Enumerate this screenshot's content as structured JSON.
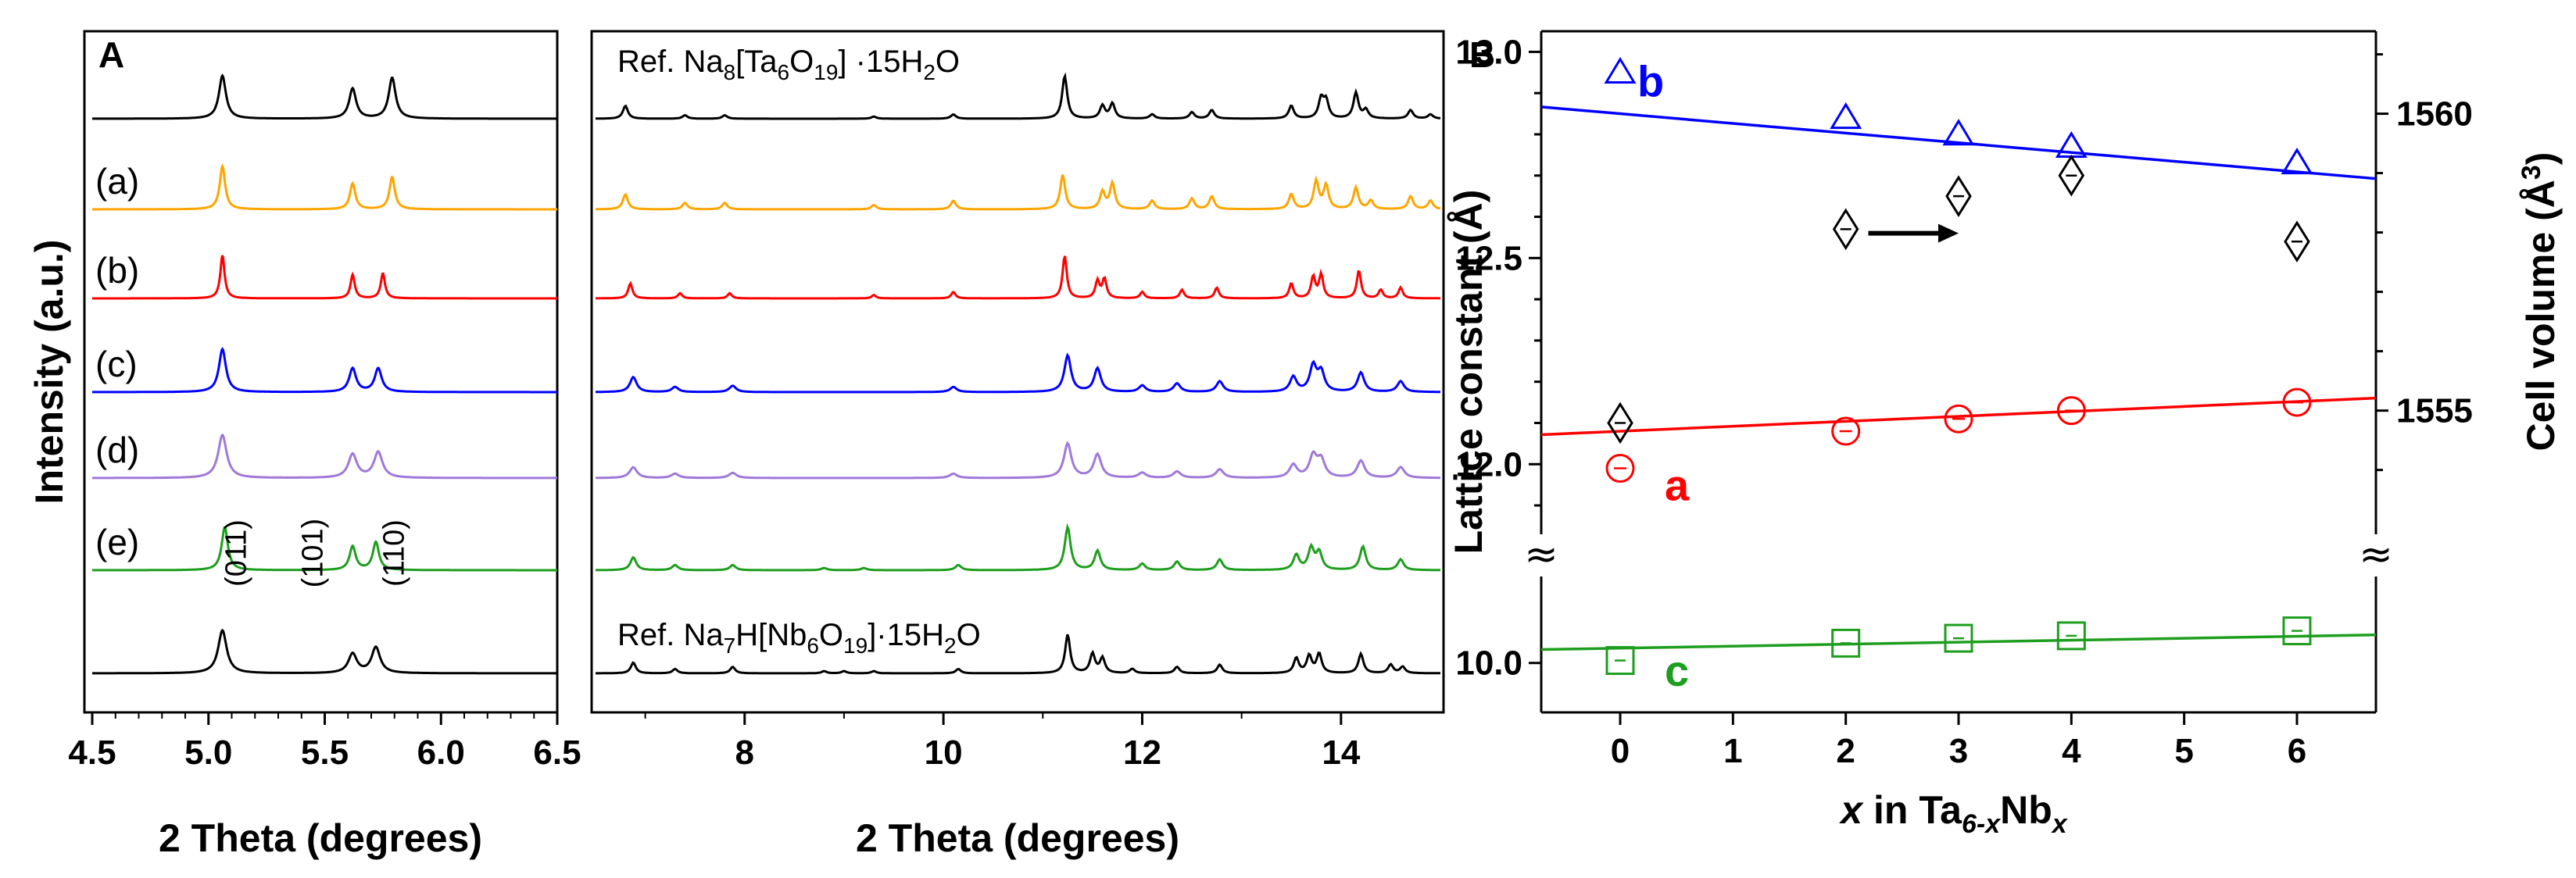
{
  "chart_data": [
    {
      "panel": "A",
      "type": "line",
      "xlabel": "2 Theta (degrees)",
      "ylabel": "Intensity (a.u.)",
      "xlim": [
        4.5,
        6.5
      ],
      "xticks": [
        4.5,
        5.0,
        5.5,
        6.0,
        6.5
      ],
      "xtick_labels": [
        "4.5",
        "5.0",
        "5.5",
        "6.0",
        "6.5"
      ],
      "hkl_labels": [
        {
          "text": "(011)",
          "x": 5.16
        },
        {
          "text": "(101)",
          "x": 5.49
        },
        {
          "text": "(110)",
          "x": 5.84
        }
      ],
      "series": [
        {
          "name": "Ref. Na8[Ta6O19]·15H2O",
          "label": "",
          "color": "#000000",
          "width": 0.018,
          "peaks": [
            [
              5.06,
              1.0
            ],
            [
              5.62,
              0.7
            ],
            [
              5.79,
              0.95
            ]
          ]
        },
        {
          "name": "(a)",
          "label": "(a)",
          "color": "#FFA500",
          "width": 0.014,
          "peaks": [
            [
              5.06,
              1.0
            ],
            [
              5.62,
              0.6
            ],
            [
              5.79,
              0.75
            ]
          ]
        },
        {
          "name": "(b)",
          "label": "(b)",
          "color": "#FF0000",
          "width": 0.011,
          "peaks": [
            [
              5.06,
              1.0
            ],
            [
              5.62,
              0.55
            ],
            [
              5.75,
              0.58
            ]
          ]
        },
        {
          "name": "(c)",
          "label": "(c)",
          "color": "#0000FF",
          "width": 0.018,
          "peaks": [
            [
              5.06,
              1.0
            ],
            [
              5.62,
              0.55
            ],
            [
              5.73,
              0.55
            ]
          ]
        },
        {
          "name": "(d)",
          "label": "(d)",
          "color": "#9F79D9",
          "width": 0.022,
          "peaks": [
            [
              5.06,
              1.0
            ],
            [
              5.62,
              0.55
            ],
            [
              5.73,
              0.6
            ]
          ]
        },
        {
          "name": "(e)",
          "label": "(e)",
          "color": "#1E9E1E",
          "width": 0.016,
          "peaks": [
            [
              5.07,
              1.0
            ],
            [
              5.62,
              0.55
            ],
            [
              5.72,
              0.65
            ]
          ]
        },
        {
          "name": "Ref. Na7H[Nb6O19]·15H2O",
          "label": "",
          "color": "#000000",
          "width": 0.022,
          "peaks": [
            [
              5.06,
              1.0
            ],
            [
              5.62,
              0.45
            ],
            [
              5.72,
              0.6
            ]
          ]
        }
      ]
    },
    {
      "panel": "A-continued",
      "type": "line",
      "xlabel": "2 Theta (degrees)",
      "xlim": [
        6.5,
        15.0
      ],
      "xticks": [
        8,
        10,
        12,
        14
      ],
      "xtick_labels": [
        "8",
        "10",
        "12",
        "14"
      ],
      "ref_top": {
        "prefix": "Ref. Na",
        "s1": "8",
        "mid": "[Ta",
        "s2": "6",
        "mid2": "O",
        "s3": "19",
        "suffix": "] ·15H",
        "s4": "2",
        "end": "O"
      },
      "ref_bottom": {
        "prefix": "Ref. Na",
        "s1": "7",
        "mid": "H[Nb",
        "s2": "6",
        "mid2": "O",
        "s3": "19",
        "suffix": "]·15H",
        "s4": "2",
        "end": "O"
      },
      "series": [
        {
          "name": "Ref. Na8[Ta6O19]·15H2O",
          "color": "#000000",
          "width": 0.03,
          "peaks": [
            [
              6.8,
              0.3
            ],
            [
              7.4,
              0.08
            ],
            [
              7.8,
              0.08
            ],
            [
              9.3,
              0.05
            ],
            [
              10.1,
              0.1
            ],
            [
              11.22,
              1.0
            ],
            [
              11.6,
              0.3
            ],
            [
              11.7,
              0.35
            ],
            [
              12.1,
              0.1
            ],
            [
              12.5,
              0.15
            ],
            [
              12.7,
              0.2
            ],
            [
              13.5,
              0.3
            ],
            [
              13.8,
              0.45
            ],
            [
              13.85,
              0.4
            ],
            [
              14.15,
              0.6
            ],
            [
              14.25,
              0.2
            ],
            [
              14.7,
              0.2
            ],
            [
              14.9,
              0.1
            ]
          ]
        },
        {
          "name": "(a)",
          "color": "#FFA500",
          "width": 0.03,
          "peaks": [
            [
              6.8,
              0.35
            ],
            [
              7.4,
              0.15
            ],
            [
              7.8,
              0.15
            ],
            [
              9.3,
              0.1
            ],
            [
              10.1,
              0.2
            ],
            [
              11.2,
              0.8
            ],
            [
              11.6,
              0.4
            ],
            [
              11.7,
              0.6
            ],
            [
              12.1,
              0.2
            ],
            [
              12.5,
              0.25
            ],
            [
              12.7,
              0.3
            ],
            [
              13.5,
              0.35
            ],
            [
              13.75,
              0.65
            ],
            [
              13.85,
              0.55
            ],
            [
              14.15,
              0.5
            ],
            [
              14.3,
              0.2
            ],
            [
              14.7,
              0.3
            ],
            [
              14.9,
              0.2
            ]
          ]
        },
        {
          "name": "(b)",
          "color": "#FF0000",
          "width": 0.025,
          "peaks": [
            [
              6.85,
              0.35
            ],
            [
              7.35,
              0.12
            ],
            [
              7.85,
              0.12
            ],
            [
              9.3,
              0.08
            ],
            [
              10.1,
              0.15
            ],
            [
              11.22,
              1.0
            ],
            [
              11.55,
              0.4
            ],
            [
              11.62,
              0.45
            ],
            [
              12.0,
              0.15
            ],
            [
              12.4,
              0.2
            ],
            [
              12.75,
              0.25
            ],
            [
              13.5,
              0.35
            ],
            [
              13.72,
              0.5
            ],
            [
              13.8,
              0.55
            ],
            [
              14.18,
              0.65
            ],
            [
              14.4,
              0.2
            ],
            [
              14.6,
              0.25
            ]
          ]
        },
        {
          "name": "(c)",
          "color": "#0000FF",
          "width": 0.04,
          "peaks": [
            [
              6.88,
              0.35
            ],
            [
              7.3,
              0.12
            ],
            [
              7.88,
              0.15
            ],
            [
              10.1,
              0.12
            ],
            [
              11.25,
              0.85
            ],
            [
              11.55,
              0.55
            ],
            [
              12.0,
              0.15
            ],
            [
              12.35,
              0.2
            ],
            [
              12.78,
              0.25
            ],
            [
              13.52,
              0.35
            ],
            [
              13.72,
              0.6
            ],
            [
              13.8,
              0.45
            ],
            [
              14.2,
              0.45
            ],
            [
              14.6,
              0.25
            ]
          ]
        },
        {
          "name": "(d)",
          "color": "#9F79D9",
          "width": 0.045,
          "peaks": [
            [
              6.88,
              0.25
            ],
            [
              7.3,
              0.1
            ],
            [
              7.88,
              0.12
            ],
            [
              10.1,
              0.1
            ],
            [
              11.25,
              0.8
            ],
            [
              11.55,
              0.55
            ],
            [
              12.0,
              0.12
            ],
            [
              12.35,
              0.15
            ],
            [
              12.78,
              0.2
            ],
            [
              13.52,
              0.3
            ],
            [
              13.72,
              0.5
            ],
            [
              13.8,
              0.4
            ],
            [
              14.2,
              0.4
            ],
            [
              14.6,
              0.25
            ]
          ]
        },
        {
          "name": "(e)",
          "color": "#1E9E1E",
          "width": 0.035,
          "peaks": [
            [
              6.88,
              0.3
            ],
            [
              7.3,
              0.12
            ],
            [
              7.88,
              0.12
            ],
            [
              8.8,
              0.05
            ],
            [
              9.2,
              0.05
            ],
            [
              10.15,
              0.12
            ],
            [
              11.25,
              1.0
            ],
            [
              11.55,
              0.45
            ],
            [
              12.0,
              0.15
            ],
            [
              12.35,
              0.2
            ],
            [
              12.78,
              0.25
            ],
            [
              13.55,
              0.35
            ],
            [
              13.7,
              0.5
            ],
            [
              13.78,
              0.4
            ],
            [
              14.22,
              0.55
            ],
            [
              14.6,
              0.25
            ]
          ]
        },
        {
          "name": "Ref. Na7H[Nb6O19]·15H2O",
          "color": "#000000",
          "width": 0.03,
          "peaks": [
            [
              6.88,
              0.25
            ],
            [
              7.3,
              0.1
            ],
            [
              7.88,
              0.15
            ],
            [
              8.8,
              0.05
            ],
            [
              9.0,
              0.05
            ],
            [
              9.3,
              0.05
            ],
            [
              10.15,
              0.1
            ],
            [
              11.25,
              0.9
            ],
            [
              11.5,
              0.45
            ],
            [
              11.6,
              0.35
            ],
            [
              11.9,
              0.1
            ],
            [
              12.35,
              0.15
            ],
            [
              12.78,
              0.2
            ],
            [
              13.55,
              0.35
            ],
            [
              13.68,
              0.4
            ],
            [
              13.78,
              0.45
            ],
            [
              14.2,
              0.45
            ],
            [
              14.5,
              0.2
            ],
            [
              14.62,
              0.15
            ]
          ]
        }
      ]
    },
    {
      "panel": "B",
      "type": "scatter",
      "xlabel_parts": [
        "x",
        " in Ta",
        "6-x",
        "Nb",
        "x"
      ],
      "ylabel_left": "Lattice constant (Å)",
      "ylabel_right_parts": [
        "Cell volume (Å",
        "3",
        ")"
      ],
      "xlim": [
        -0.7,
        6.7
      ],
      "xticks": [
        0,
        1,
        2,
        3,
        4,
        5,
        6
      ],
      "xtick_labels": [
        "0",
        "1",
        "2",
        "3",
        "4",
        "5",
        "6"
      ],
      "ylim_upper": [
        11.83,
        13.05
      ],
      "yticks_left_upper": [
        12.0,
        12.5,
        13.0
      ],
      "ytick_labels_left_upper": [
        "12.0",
        "12.5",
        "13.0"
      ],
      "ylim_lower": [
        9.8,
        10.35
      ],
      "yticks_left_lower": [
        10.0
      ],
      "ytick_labels_left_lower": [
        "10.0"
      ],
      "yticks_right": [
        1555,
        1560
      ],
      "ytick_labels_right": [
        "1555",
        "1560"
      ],
      "right_scale": {
        "upper_value": 1560,
        "upper_y": 12.85,
        "lower_value": 1555,
        "lower_y": 12.13
      },
      "series": [
        {
          "name": "b",
          "color": "#0000FF",
          "marker": "triangle",
          "x": [
            0,
            2,
            3,
            4,
            6
          ],
          "y": [
            12.95,
            12.84,
            12.8,
            12.77,
            12.73
          ],
          "fit": [
            12.85,
            -0.0235
          ]
        },
        {
          "name": "a",
          "color": "#FF0000",
          "marker": "circle",
          "x": [
            0,
            2,
            3,
            4,
            6
          ],
          "y": [
            11.99,
            12.08,
            12.11,
            12.13,
            12.15
          ],
          "fit": [
            12.08,
            0.012
          ]
        },
        {
          "name": "c",
          "color": "#1E9E1E",
          "marker": "square",
          "x": [
            0,
            2,
            3,
            4,
            6
          ],
          "y": [
            10.01,
            10.08,
            10.1,
            10.11,
            10.13
          ],
          "fit": [
            10.06,
            0.008
          ]
        },
        {
          "name": "Cell volume",
          "color": "#000000",
          "marker": "diamond",
          "axis": "right",
          "x": [
            0,
            2,
            3,
            4,
            6
          ],
          "y": [
            12.1,
            12.57,
            12.65,
            12.7,
            12.54
          ]
        }
      ],
      "arrow": {
        "x_start": 2.2,
        "x_end": 3.0,
        "y": 12.56,
        "direction": "right"
      }
    }
  ],
  "labels": {
    "panel_a": "A",
    "panel_b": "B",
    "axis_break": "≈"
  }
}
